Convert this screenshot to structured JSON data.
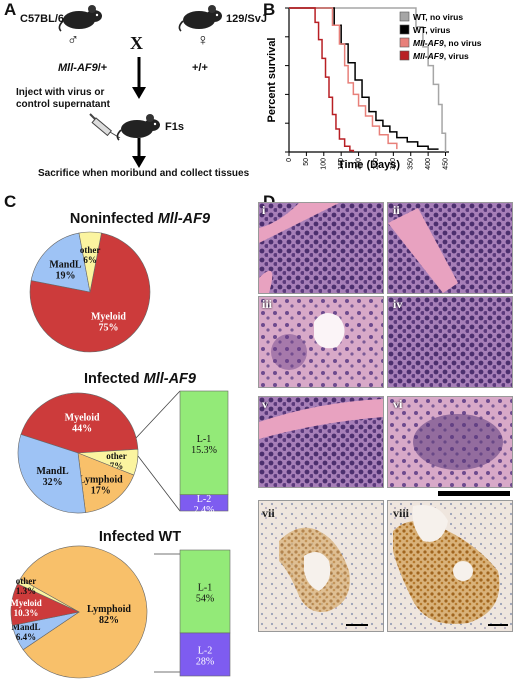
{
  "panel_labels": {
    "a": "A",
    "b": "B",
    "c": "C",
    "d": "D"
  },
  "panel_a": {
    "strain1": "C57BL/6",
    "strain2": "129/SvJ",
    "male_symbol": "♂",
    "female_symbol": "♀",
    "cross": "X",
    "genotype1_prefix": "Mll-AF9",
    "genotype1_suffix": "/+",
    "genotype2": "+/+",
    "inject_line1": "Inject with virus or",
    "inject_line2": "control supernatant",
    "f1": "F1s",
    "sacrifice": "Sacrifice when moribund and collect tissues"
  },
  "chart_data": [
    {
      "type": "line",
      "subtype": "survival-step",
      "xlabel": "Time (Days)",
      "ylabel": "Percent survival",
      "xlim": [
        0,
        460
      ],
      "ylim": [
        0,
        100
      ],
      "xticks": [
        0,
        50,
        100,
        150,
        200,
        250,
        300,
        350,
        400,
        450
      ],
      "yticks": [
        0,
        20,
        40,
        60,
        80,
        100
      ],
      "legend_position": "top-right",
      "series": [
        {
          "name": "WT, no virus",
          "color": "#a6a6a6",
          "x": [
            0,
            330,
            365,
            385,
            400,
            415,
            430,
            440,
            450
          ],
          "y": [
            100,
            100,
            87,
            73,
            60,
            47,
            33,
            13,
            0
          ]
        },
        {
          "name": "WT, virus",
          "color": "#000000",
          "x": [
            0,
            110,
            130,
            150,
            170,
            190,
            210,
            230,
            250,
            270,
            290,
            310,
            340,
            370,
            400,
            430
          ],
          "y": [
            100,
            100,
            88,
            75,
            62,
            50,
            38,
            28,
            22,
            18,
            14,
            10,
            7,
            4,
            2,
            2
          ]
        },
        {
          "name": "Mll-AF9, no virus",
          "color": "#e8807a",
          "x": [
            0,
            100,
            125,
            145,
            160,
            170,
            185,
            200,
            220,
            240,
            260,
            285,
            310
          ],
          "y": [
            100,
            100,
            88,
            75,
            60,
            48,
            40,
            32,
            25,
            18,
            12,
            6,
            2
          ]
        },
        {
          "name": "Mll-AF9, virus",
          "color": "#b81f24",
          "x": [
            0,
            60,
            75,
            85,
            95,
            105,
            115,
            125,
            135,
            145,
            160,
            175,
            185
          ],
          "y": [
            100,
            100,
            90,
            78,
            65,
            52,
            38,
            26,
            16,
            9,
            4,
            1,
            0
          ]
        }
      ]
    },
    {
      "type": "pie",
      "title_prefix": "Noninfected ",
      "title_italic": "Mll-AF9",
      "slices": [
        {
          "label": "Myeloid",
          "value": 75,
          "display": "75%",
          "color": "#cc3b3b"
        },
        {
          "label": "MandL",
          "value": 19,
          "display": "19%",
          "color": "#9ec3f5"
        },
        {
          "label": "other",
          "value": 6,
          "display": "6%",
          "color": "#fbf4a0"
        }
      ]
    },
    {
      "type": "pie",
      "title_prefix": "Infected ",
      "title_italic": "Mll-AF9",
      "slices": [
        {
          "label": "Myeloid",
          "value": 44,
          "display": "44%",
          "color": "#cc3b3b"
        },
        {
          "label": "other",
          "value": 7,
          "display": "7%",
          "color": "#fbf4a0"
        },
        {
          "label": "Lymphoid",
          "value": 17,
          "display": "17%",
          "color": "#f8c06a"
        },
        {
          "label": "MandL",
          "value": 32,
          "display": "32%",
          "color": "#9ec3f5"
        }
      ],
      "breakdown": [
        {
          "label": "L-1",
          "display": "15.3%",
          "value": 15.3,
          "color": "#93ea78"
        },
        {
          "label": "L-2",
          "display": "2.4%",
          "value": 2.4,
          "color": "#7e5cf0"
        }
      ]
    },
    {
      "type": "pie",
      "title_prefix": "Infected WT",
      "title_italic": "",
      "slices": [
        {
          "label": "Lymphoid",
          "value": 82,
          "display": "82%",
          "color": "#f8c06a"
        },
        {
          "label": "MandL",
          "value": 6.4,
          "display": "6.4%",
          "color": "#9ec3f5"
        },
        {
          "label": "Myeloid",
          "value": 10.3,
          "display": "10.3%",
          "color": "#cc3b3b"
        },
        {
          "label": "other",
          "value": 1.3,
          "display": "1.3%",
          "color": "#fbf4a0"
        }
      ],
      "breakdown": [
        {
          "label": "L-1",
          "display": "54%",
          "value": 54,
          "color": "#93ea78"
        },
        {
          "label": "L-2",
          "display": "28%",
          "value": 28,
          "color": "#7e5cf0"
        }
      ]
    }
  ],
  "panel_d": {
    "labels": [
      "i",
      "ii",
      "iii",
      "iv",
      "v",
      "vi",
      "vii",
      "viii"
    ]
  }
}
